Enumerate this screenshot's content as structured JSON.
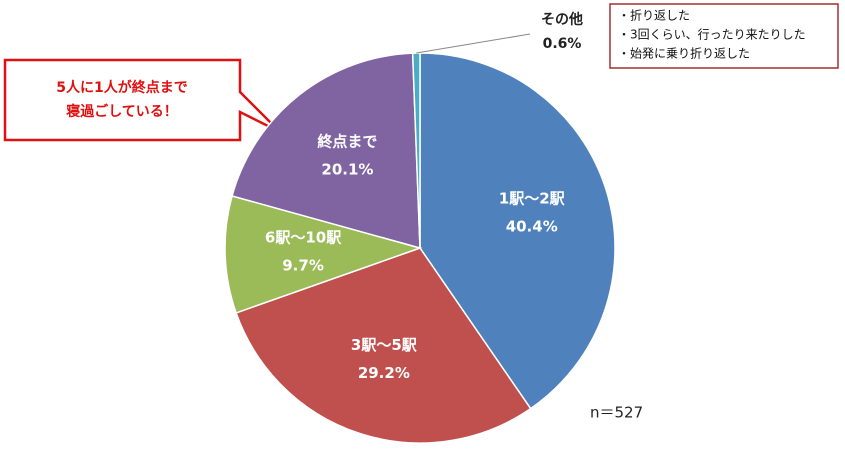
{
  "chart_data": {
    "type": "pie",
    "categories": [
      "1駅～2駅",
      "3駅～5駅",
      "6駅～10駅",
      "終点まで",
      "その他"
    ],
    "values": [
      40.4,
      29.2,
      9.7,
      20.1,
      0.6
    ],
    "value_labels": [
      "40.4%",
      "29.2%",
      "9.7%",
      "20.1%",
      "0.6%"
    ],
    "colors": [
      "#4f81bd",
      "#c0504d",
      "#9bbb59",
      "#8064a2",
      "#4bacc6"
    ],
    "annotations": {
      "callout": [
        "5人に1人が終点まで",
        "寝過ごしている！"
      ],
      "notes": [
        "・折り返した",
        "・3回くらい、行ったり来たりした",
        "・始発に乗り折り返した"
      ],
      "sample": "n＝527"
    }
  }
}
